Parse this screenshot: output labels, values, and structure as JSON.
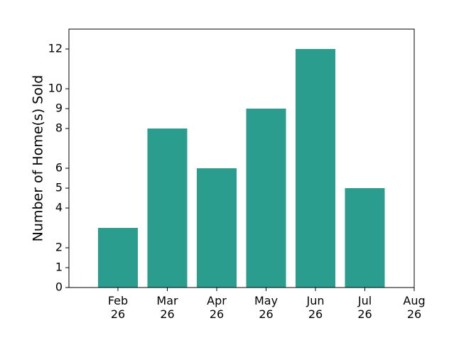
{
  "chart_data": {
    "type": "bar",
    "categories": [
      "Feb 26",
      "Mar 26",
      "Apr 26",
      "May 26",
      "Jun 26",
      "Jul 26"
    ],
    "values": [
      3,
      8,
      6,
      9,
      12,
      5
    ],
    "x_ticks": [
      {
        "month": "Feb",
        "year": "26"
      },
      {
        "month": "Mar",
        "year": "26"
      },
      {
        "month": "Apr",
        "year": "26"
      },
      {
        "month": "May",
        "year": "26"
      },
      {
        "month": "Jun",
        "year": "26"
      },
      {
        "month": "Jul",
        "year": "26"
      },
      {
        "month": "Aug",
        "year": "26"
      }
    ],
    "y_ticks": [
      0,
      1,
      2,
      4,
      5,
      6,
      8,
      9,
      10,
      12
    ],
    "ylabel": "Number of Home(s) Sold",
    "xlabel": "",
    "title": "",
    "ylim": [
      0,
      13
    ],
    "grid": false,
    "bar_color": "#2a9d8f"
  }
}
